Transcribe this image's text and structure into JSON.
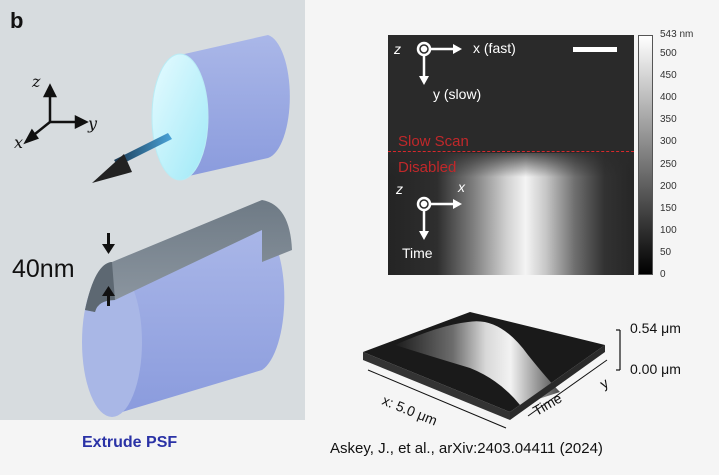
{
  "left": {
    "panel_letter": "b",
    "axis_z": "z",
    "axis_x": "x",
    "axis_y": "y",
    "thickness_label": "40nm",
    "caption": "Extrude PSF"
  },
  "afm_image": {
    "upper_axis_z": "z",
    "upper_axis_fast": "x (fast)",
    "upper_axis_slow": "y (slow)",
    "slow_scan_line1": "Slow Scan",
    "slow_scan_line2": "Disabled",
    "lower_axis_z": "z",
    "lower_axis_x": "x",
    "lower_axis_time": "Time",
    "colorbar_ticks": [
      "543 nm",
      "500",
      "450",
      "400",
      "350",
      "300",
      "250",
      "200",
      "150",
      "100",
      "50",
      "0"
    ],
    "colorbar_max": 543
  },
  "surface_plot": {
    "z_top": "0.54 μm",
    "z_bottom": "0.00 μm",
    "x_label": "x: 5.0 μm",
    "time_label": "Time",
    "y_label": "y"
  },
  "citation": "Askey, J., et al., arXiv:2403.04411 (2024)"
}
